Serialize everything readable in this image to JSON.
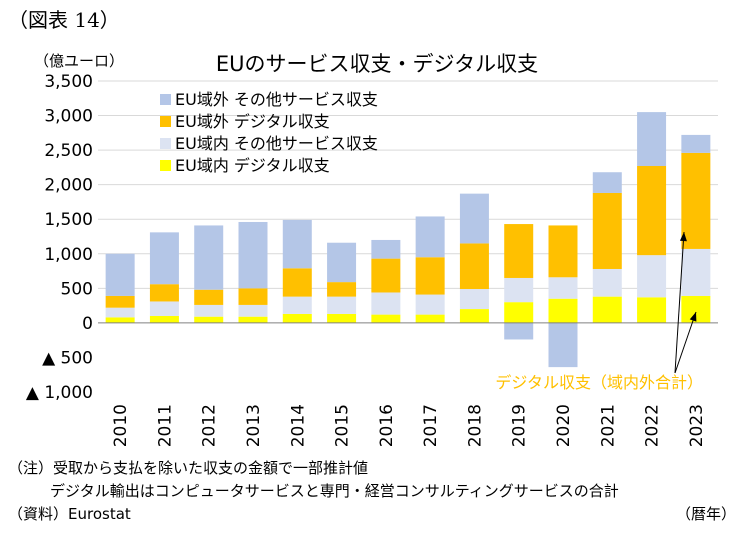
{
  "figure_label": "（図表 14）",
  "unit_label": "（億ユーロ）",
  "x_unit_label": "（暦年）",
  "notes": [
    "（注）受取から支払を除いた収支の金額で一部推計値",
    "デジタル輸出はコンピュータサービスと専門・経営コンサルティングサービスの合計",
    "（資料）Eurostat"
  ],
  "chart_data": {
    "type": "bar",
    "stacked": true,
    "title": "EUのサービス収支・デジタル収支",
    "categories": [
      "2010",
      "2011",
      "2012",
      "2013",
      "2014",
      "2015",
      "2016",
      "2017",
      "2018",
      "2019",
      "2020",
      "2021",
      "2022",
      "2023"
    ],
    "ylim": [
      -1000,
      3500
    ],
    "yticks": [
      {
        "value": 3500,
        "label": "3,500"
      },
      {
        "value": 3000,
        "label": "3,000"
      },
      {
        "value": 2500,
        "label": "2,500"
      },
      {
        "value": 2000,
        "label": "2,000"
      },
      {
        "value": 1500,
        "label": "1,500"
      },
      {
        "value": 1000,
        "label": "1,000"
      },
      {
        "value": 500,
        "label": "500"
      },
      {
        "value": 0,
        "label": "0"
      },
      {
        "value": -500,
        "label": "▲ 500"
      },
      {
        "value": -1000,
        "label": "▲ 1,000"
      }
    ],
    "series": [
      {
        "name": "EU域内 デジタル収支",
        "color": "#ffff00",
        "values": [
          80,
          100,
          90,
          90,
          130,
          130,
          120,
          120,
          200,
          300,
          350,
          380,
          370,
          390
        ]
      },
      {
        "name": "EU域内 その他サービス収支",
        "color": "#dce3f2",
        "values": [
          140,
          210,
          170,
          170,
          250,
          250,
          320,
          290,
          290,
          350,
          310,
          400,
          610,
          680
        ]
      },
      {
        "name": "EU域外 デジタル収支",
        "color": "#ffc000",
        "values": [
          170,
          250,
          220,
          240,
          410,
          210,
          490,
          540,
          660,
          780,
          750,
          1100,
          1290,
          1390
        ]
      },
      {
        "name": "EU域外 その他サービス収支",
        "color": "#b4c6e7",
        "values": [
          610,
          750,
          930,
          960,
          700,
          570,
          270,
          590,
          720,
          -240,
          -640,
          300,
          780,
          260
        ]
      }
    ],
    "legend": "top-left",
    "annotation": "デジタル収支（域内外合計）"
  }
}
